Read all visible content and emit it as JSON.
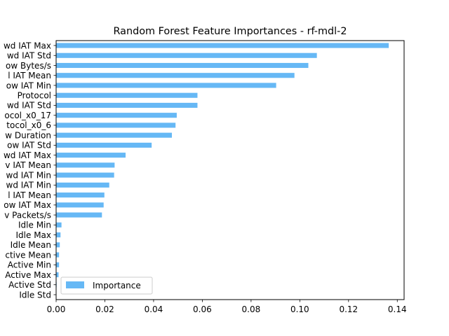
{
  "chart_data": {
    "type": "bar",
    "orientation": "horizontal",
    "title": "Random Forest Feature Importances - rf-mdl-2",
    "xlabel": "",
    "ylabel": "",
    "xlim": [
      0.0,
      0.1428
    ],
    "xticks": [
      0.0,
      0.02,
      0.04,
      0.06,
      0.08,
      0.1,
      0.12,
      0.14
    ],
    "xtick_labels": [
      "0.00",
      "0.02",
      "0.04",
      "0.06",
      "0.08",
      "0.10",
      "0.12",
      "0.14"
    ],
    "categories": [
      "wd IAT Max",
      "wd IAT Std",
      "ow Bytes/s",
      "l IAT Mean",
      "ow IAT Min",
      "Protocol",
      "wd IAT Std",
      "ocol_x0_17",
      "tocol_x0_6",
      "w Duration",
      "ow IAT Std",
      "wd IAT Max",
      "v IAT Mean",
      "wd IAT Min",
      "wd IAT Min",
      "l IAT Mean",
      "ow IAT Max",
      "v Packets/s",
      "Idle Min",
      "Idle Max",
      "Idle Mean",
      "ctive Mean",
      "Active Min",
      "Active Max",
      "Active Std",
      "Idle Std"
    ],
    "series": [
      {
        "name": "Importance",
        "color": "#66b8f5",
        "values": [
          0.1365,
          0.107,
          0.1035,
          0.0978,
          0.0903,
          0.058,
          0.058,
          0.0495,
          0.049,
          0.0475,
          0.0392,
          0.0285,
          0.024,
          0.0238,
          0.0218,
          0.0198,
          0.0195,
          0.0188,
          0.0022,
          0.0018,
          0.0015,
          0.0012,
          0.0012,
          0.001,
          0.0002,
          0.0001
        ]
      }
    ],
    "legend": {
      "position": "lower-left",
      "label": "Importance"
    },
    "grid": false
  }
}
